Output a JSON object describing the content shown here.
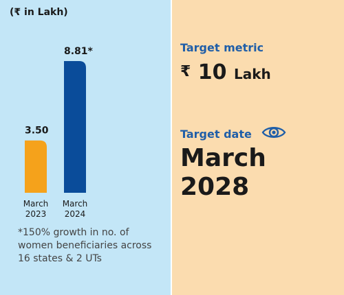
{
  "unit_label": "(₹ in Lakh)",
  "footnote": "*150% growth in no. of women beneficiaries across 16 states & 2 UTs",
  "target_metric": {
    "label": "Target metric",
    "currency": "₹",
    "number": "10",
    "unit": "Lakh"
  },
  "target_date": {
    "label": "Target date",
    "icon": "eye-icon",
    "value_line1": "March",
    "value_line2": "2028"
  },
  "colors": {
    "left_panel": "#c3e6f7",
    "right_panel": "#fbdcaf",
    "bar_2023": "#f5a21b",
    "bar_2024": "#0a4c9a",
    "accent_blue": "#1f5ea8"
  },
  "chart_data": {
    "type": "bar",
    "categories": [
      "March 2023",
      "March 2024"
    ],
    "category_lines": [
      [
        "March",
        "2023"
      ],
      [
        "March",
        "2024"
      ]
    ],
    "values": [
      3.5,
      8.81
    ],
    "data_labels": [
      "3.50",
      "8.81*"
    ],
    "title": "",
    "xlabel": "",
    "ylabel": "(₹ in Lakh)",
    "ylim": [
      0,
      8.81
    ],
    "grid": false,
    "legend": "none"
  }
}
